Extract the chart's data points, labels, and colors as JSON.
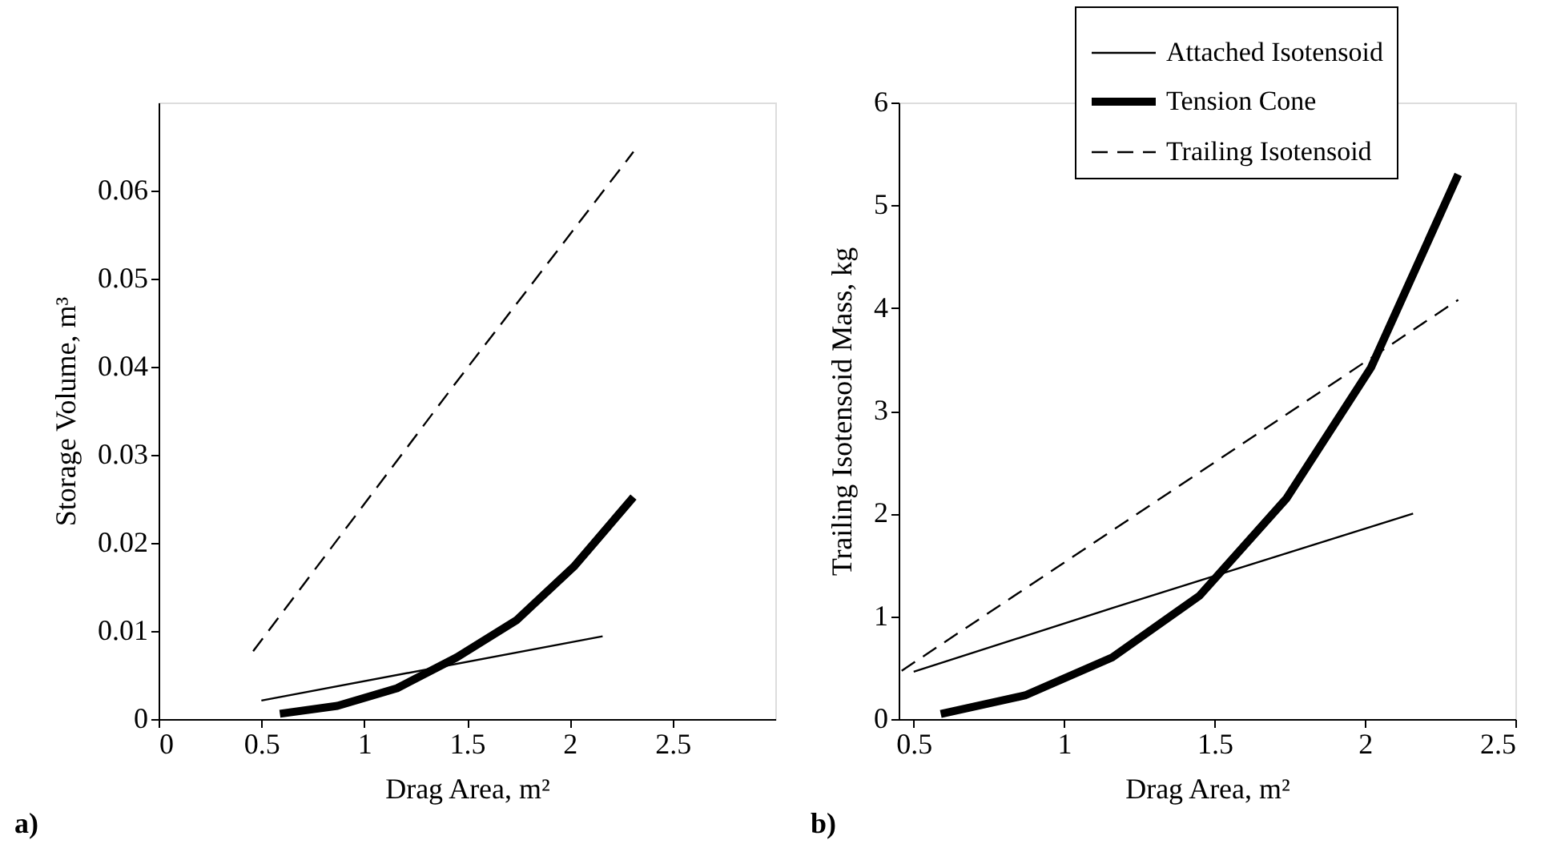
{
  "chart_data": [
    {
      "type": "line",
      "xlabel": "Drag Area, m²",
      "ylabel": "Storage Volume, m³",
      "xlim": [
        0,
        3
      ],
      "ylim": [
        0,
        0.07
      ],
      "xticks": [
        0,
        0.5,
        1,
        1.5,
        2,
        2.5
      ],
      "yticks": [
        0,
        0.01,
        0.02,
        0.03,
        0.04,
        0.05,
        0.06
      ],
      "grid": false,
      "legend": false,
      "marker": "none",
      "annotations": [
        "a)"
      ],
      "series": [
        {
          "color": "#000000",
          "line_style": "solid",
          "x": [
            0.5,
            2.16
          ],
          "values": [
            0.0021,
            0.0094
          ]
        },
        {
          "color": "#000000",
          "line_style": "solid",
          "x": [
            0.59,
            0.87,
            1.16,
            1.45,
            1.74,
            2.02,
            2.31
          ],
          "values": [
            0.0006,
            0.0015,
            0.0035,
            0.007,
            0.0112,
            0.0173,
            0.0252
          ]
        },
        {
          "color": "#000000",
          "line_style": "dashed",
          "x": [
            0.46,
            1.45,
            2.31
          ],
          "values": [
            0.0077,
            0.0383,
            0.0644
          ]
        }
      ]
    },
    {
      "type": "line",
      "xlabel": "Drag Area, m²",
      "ylabel": "Trailing Isotensoid Mass, kg",
      "xlim": [
        0.45,
        2.5
      ],
      "ylim": [
        0,
        6
      ],
      "xticks": [
        0.5,
        1,
        1.5,
        2,
        2.5
      ],
      "yticks": [
        0,
        1,
        2,
        3,
        4,
        5,
        6
      ],
      "grid": false,
      "legend": "top right",
      "marker": "none",
      "annotations": [
        "b)"
      ],
      "series": [
        {
          "name": "Attached Isotensoid",
          "color": "#000000",
          "line_style": "solid",
          "x": [
            0.5,
            1.16,
            2.16
          ],
          "values": [
            0.46,
            1.08,
            2.0
          ]
        },
        {
          "name": "Tension Cone",
          "color": "#000000",
          "line_style": "solid",
          "x": [
            0.59,
            0.87,
            1.16,
            1.45,
            1.74,
            2.02,
            2.31
          ],
          "values": [
            0.05,
            0.23,
            0.6,
            1.2,
            2.15,
            3.42,
            5.3
          ]
        },
        {
          "name": "Trailing Isotensoid",
          "color": "#000000",
          "line_style": "dashed",
          "x": [
            0.46,
            1.45,
            2.31
          ],
          "values": [
            0.47,
            2.4,
            4.08
          ]
        }
      ]
    }
  ]
}
